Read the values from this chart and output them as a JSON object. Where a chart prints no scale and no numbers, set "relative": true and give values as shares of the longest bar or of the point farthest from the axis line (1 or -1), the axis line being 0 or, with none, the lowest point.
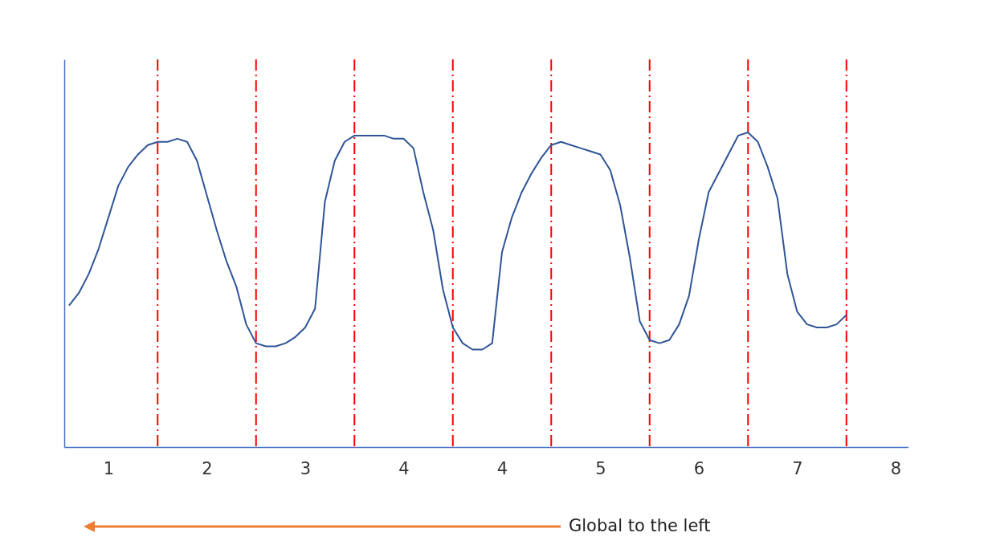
{
  "chart_data": {
    "type": "line",
    "relative": true,
    "tick_labels": "x",
    "categories": [
      null,
      null,
      null,
      null,
      "1",
      null,
      null,
      null,
      null,
      null,
      null,
      null,
      null,
      null,
      "2",
      null,
      null,
      null,
      null,
      null,
      null,
      null,
      null,
      null,
      "3",
      null,
      null,
      null,
      null,
      null,
      null,
      null,
      null,
      null,
      "4",
      null,
      null,
      null,
      null,
      null,
      null,
      null,
      null,
      null,
      "4",
      null,
      null,
      null,
      null,
      null,
      null,
      null,
      null,
      null,
      "5",
      null,
      null,
      null,
      null,
      null,
      null,
      null,
      null,
      null,
      "6",
      null,
      null,
      null,
      null,
      null,
      null,
      null,
      null,
      null,
      "7",
      null,
      null,
      null,
      null,
      null,
      null,
      null,
      null,
      null,
      "8"
    ],
    "series": [
      {
        "color": "#2f5597",
        "values": [
          0.45,
          0.49,
          0.55,
          0.63,
          0.73,
          0.83,
          0.89,
          0.93,
          0.96,
          0.97,
          0.97,
          0.98,
          0.97,
          0.91,
          0.8,
          0.69,
          0.59,
          0.51,
          0.39,
          0.33,
          0.32,
          0.32,
          0.33,
          0.35,
          0.38,
          0.44,
          0.78,
          0.91,
          0.97,
          0.99,
          0.99,
          0.99,
          0.99,
          0.98,
          0.98,
          0.95,
          0.81,
          0.69,
          0.5,
          0.38,
          0.33,
          0.31,
          0.31,
          0.33,
          0.62,
          0.73,
          0.81,
          0.87,
          0.92,
          0.96,
          0.97,
          0.96,
          0.95,
          0.94,
          0.93,
          0.88,
          0.77,
          0.6,
          0.4,
          0.34,
          0.33,
          0.34,
          0.39,
          0.48,
          0.66,
          0.81,
          0.87,
          0.93,
          0.99,
          1.0,
          0.97,
          0.89,
          0.79,
          0.55,
          0.43,
          0.39,
          0.38,
          0.38,
          0.39,
          0.42,
          null,
          null,
          null,
          null,
          null
        ]
      }
    ],
    "annotations": [
      "Global to the left"
    ]
  }
}
